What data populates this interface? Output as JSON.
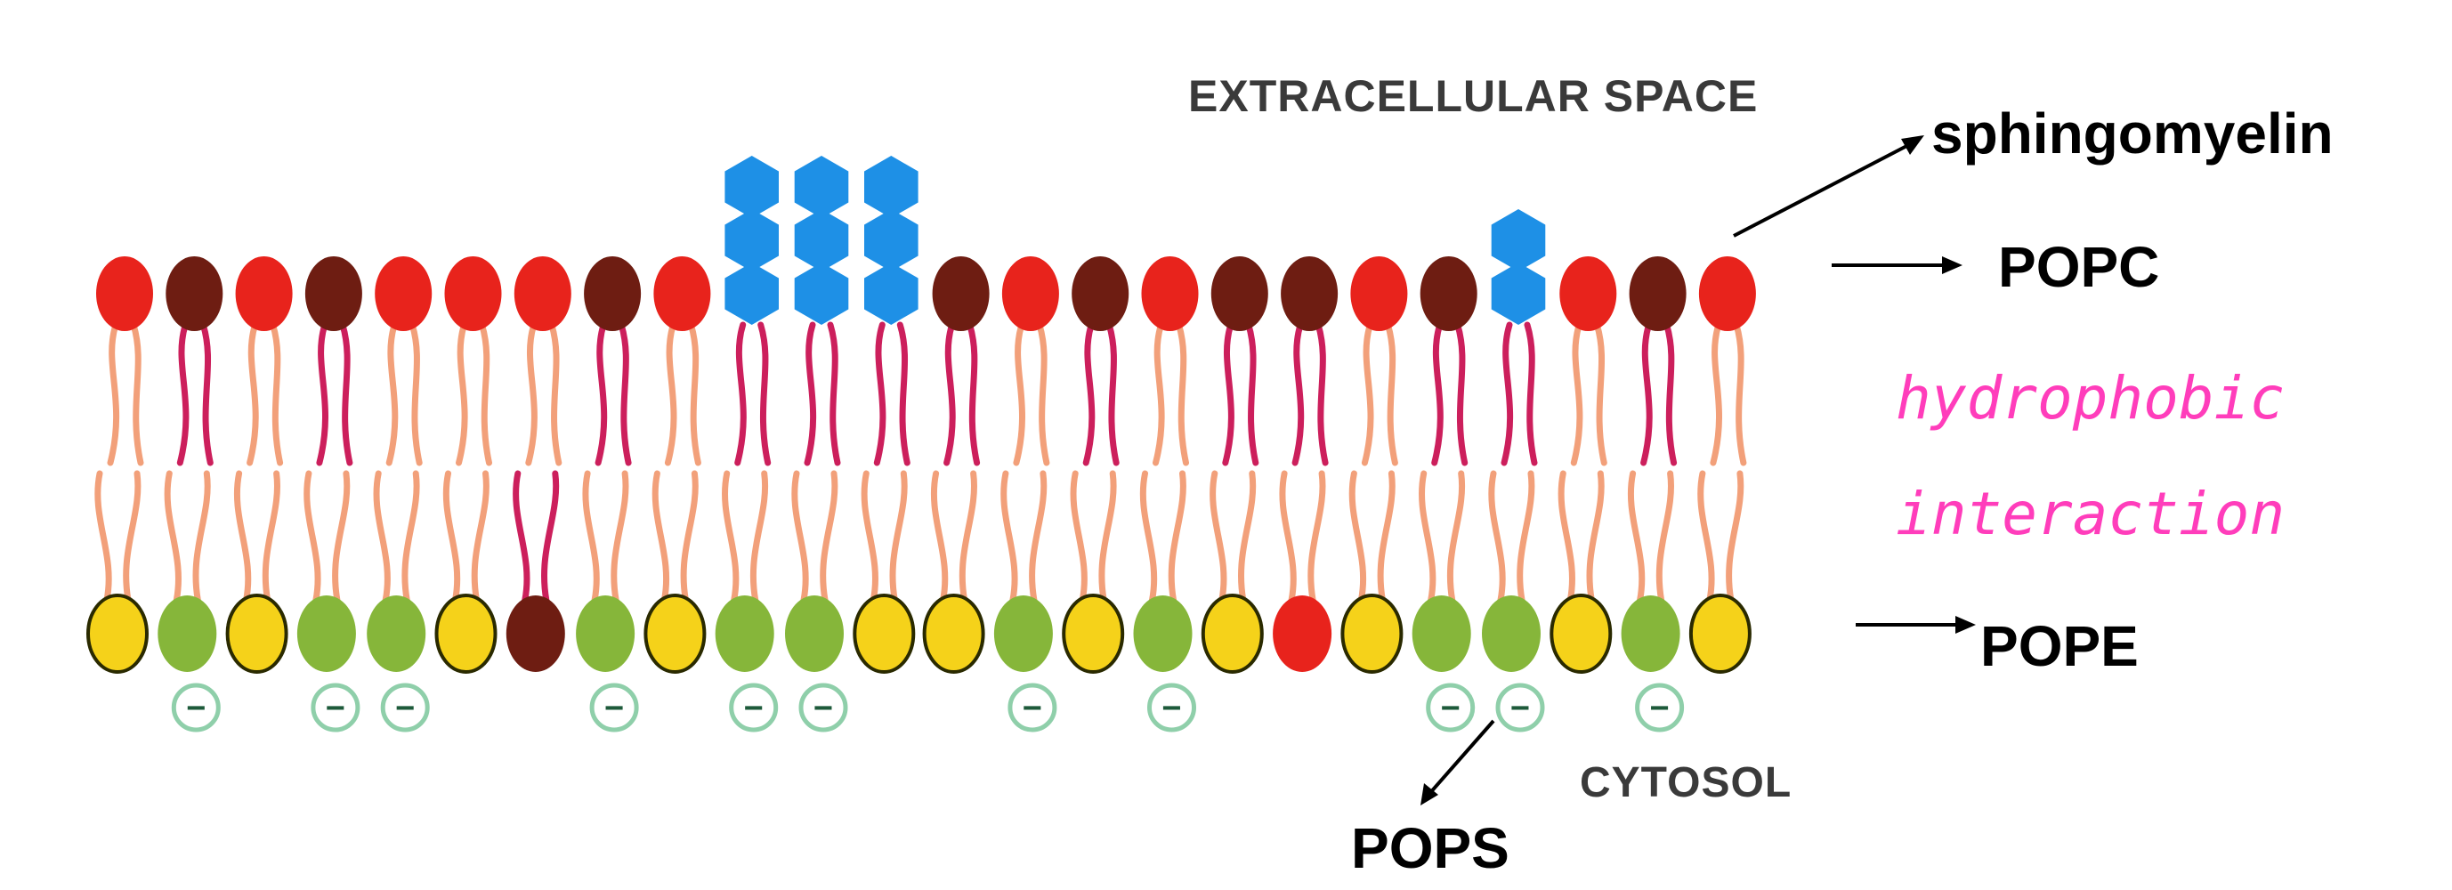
{
  "labels": {
    "extracellular": "EXTRACELLULAR SPACE",
    "cytosol": "CYTOSOL",
    "sphingomyelin": "sphingomyelin",
    "popc": "POPC",
    "pope": "POPE",
    "pops": "POPS",
    "hydrophobic_1": "hydrophobic",
    "hydrophobic_2": "interaction",
    "minus_sign": "−"
  },
  "colors": {
    "popc_head": "#e8231c",
    "sphingomyelin_head": "#6e1d12",
    "sugar": "#1e90e6",
    "pope_head": "#f5d21a",
    "pops_head": "#86b63a",
    "tail_orange": "#f2a07a",
    "tail_magenta": "#cc1f5c",
    "charge_ring": "#8fcfaa",
    "annotation_pink": "#ff3dbb"
  },
  "outer_leaflet": [
    "POPC",
    "SM",
    "POPC",
    "SM",
    "POPC",
    "POPC",
    "POPC",
    "SM",
    "POPC",
    "GLY3",
    "GLY3",
    "GLY3",
    "SM",
    "POPC",
    "SM",
    "POPC",
    "SM",
    "SM",
    "POPC",
    "SM",
    "GLY2",
    "POPC",
    "SM",
    "POPC"
  ],
  "inner_leaflet": [
    "PE",
    "PS",
    "PE",
    "PS",
    "PS",
    "PE",
    "SM",
    "PS",
    "PE",
    "PS",
    "PS",
    "PE",
    "PE",
    "PS",
    "PE",
    "PS",
    "PE",
    "PC",
    "PE",
    "PS",
    "PS",
    "PE",
    "PS",
    "PE"
  ]
}
